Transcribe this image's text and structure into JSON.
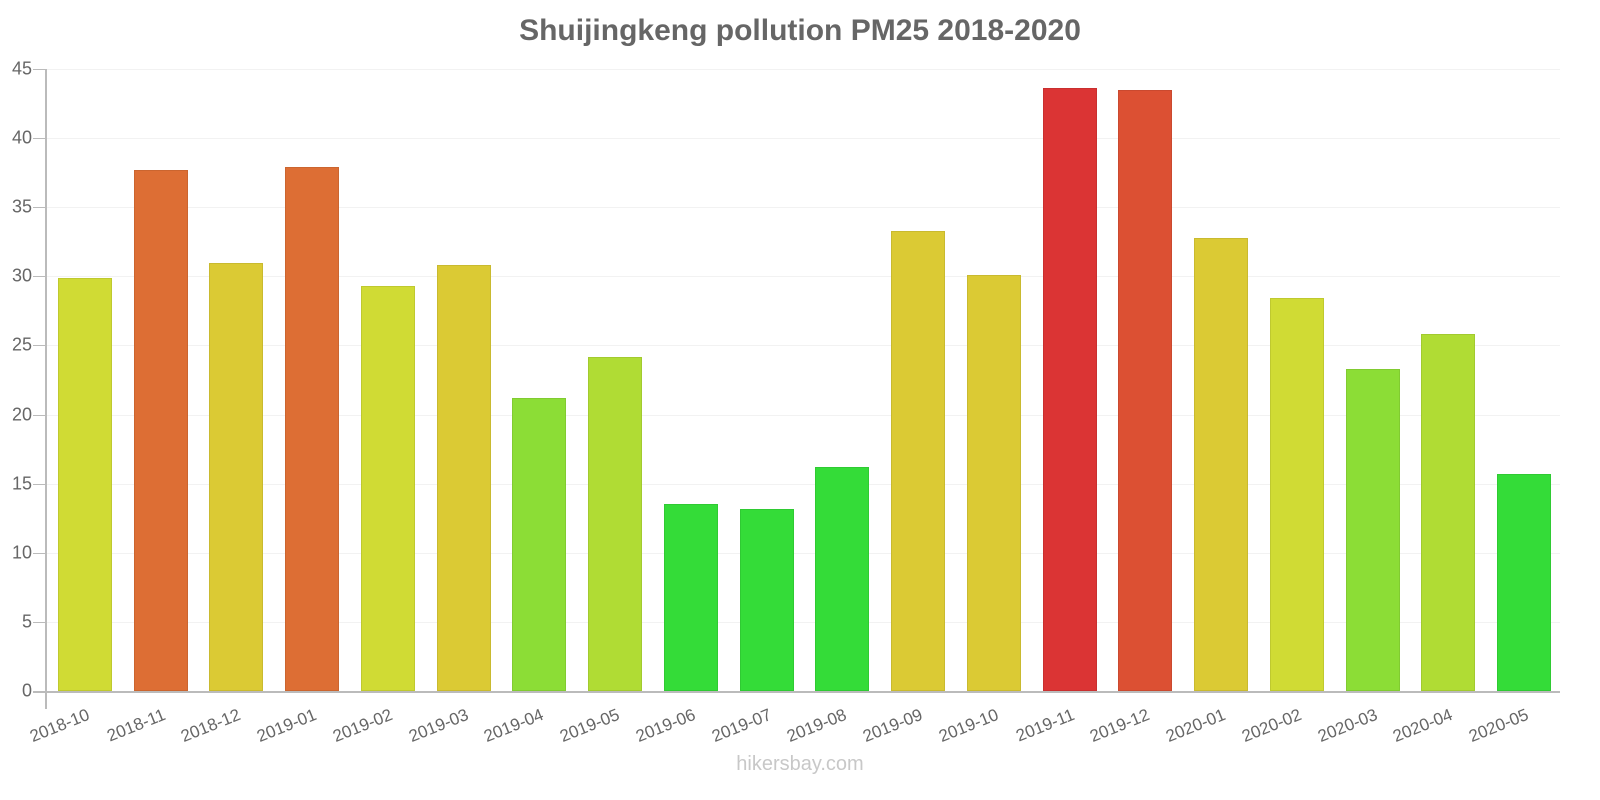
{
  "chart_data": {
    "type": "bar",
    "title": "Shuijingkeng pollution PM25 2018-2020",
    "xlabel": "",
    "ylabel": "",
    "ylim": [
      0,
      45
    ],
    "yticks": [
      0,
      5,
      10,
      15,
      20,
      25,
      30,
      35,
      40,
      45
    ],
    "grid": true,
    "legend": null,
    "categories": [
      "2018-10",
      "2018-11",
      "2018-12",
      "2019-01",
      "2019-02",
      "2019-03",
      "2019-04",
      "2019-05",
      "2019-06",
      "2019-07",
      "2019-08",
      "2019-09",
      "2019-10",
      "2019-11",
      "2019-12",
      "2020-01",
      "2020-02",
      "2020-03",
      "2020-04",
      "2020-05"
    ],
    "values": [
      29.9,
      37.7,
      31.0,
      37.9,
      29.3,
      30.8,
      21.2,
      24.2,
      13.5,
      13.2,
      16.2,
      33.3,
      30.1,
      43.6,
      43.5,
      32.8,
      28.4,
      23.3,
      25.8,
      15.7
    ],
    "colors": [
      "#d0db34",
      "#dd6e34",
      "#dbca34",
      "#dd6e34",
      "#d0db34",
      "#dbca34",
      "#8cdd36",
      "#b0dc34",
      "#34dc38",
      "#34dc38",
      "#34dc38",
      "#dbca34",
      "#dbca34",
      "#db3434",
      "#dc5033",
      "#dbca34",
      "#d0db34",
      "#8cdd36",
      "#b0dc34",
      "#34dc38"
    ]
  },
  "watermark": "hikersbay.com"
}
